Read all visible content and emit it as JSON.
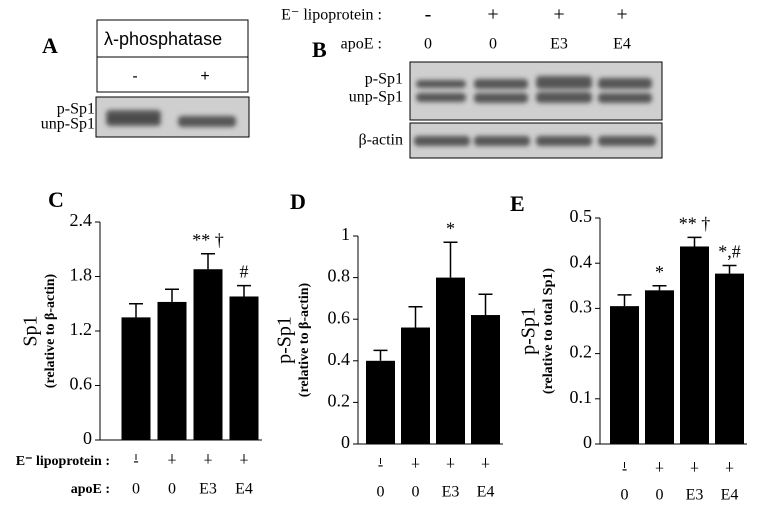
{
  "panel_a": {
    "label": "A",
    "header": "λ-phosphatase",
    "lanes": [
      "-",
      "+"
    ],
    "bands": [
      "p-Sp1",
      "unp-Sp1"
    ]
  },
  "panel_b": {
    "label": "B",
    "row_labels": [
      "E⁻ lipoprotein :",
      "apoE :"
    ],
    "lipoprotein": [
      "-",
      "+",
      "+",
      "+"
    ],
    "apoe": [
      "0",
      "0",
      "E3",
      "E4"
    ],
    "bands": [
      "p-Sp1",
      "unp-Sp1"
    ],
    "loading": "β-actin"
  },
  "chart_data": [
    {
      "type": "bar",
      "panel": "C",
      "ylabel": "Sp1",
      "ylabel_sub": "(relative to β-actin)",
      "row_labels": [
        "E⁻ lipoprotein :",
        "apoE :"
      ],
      "lipoprotein": [
        "-",
        "+",
        "+",
        "+"
      ],
      "categories": [
        "0",
        "0",
        "E3",
        "E4"
      ],
      "values": [
        1.35,
        1.52,
        1.88,
        1.58
      ],
      "errors": [
        0.15,
        0.14,
        0.17,
        0.12
      ],
      "bar_labels": [
        null,
        null,
        "** †",
        "#"
      ],
      "color": "#000000",
      "ylim": [
        0,
        2.4
      ],
      "yticks": [
        0,
        0.6,
        1.2,
        1.8,
        2.4
      ]
    },
    {
      "type": "bar",
      "panel": "D",
      "ylabel": "p-Sp1",
      "ylabel_sub": "(relative to β-actin)",
      "lipoprotein": [
        "-",
        "+",
        "+",
        "+"
      ],
      "categories": [
        "0",
        "0",
        "E3",
        "E4"
      ],
      "values": [
        0.4,
        0.56,
        0.8,
        0.62
      ],
      "errors": [
        0.05,
        0.1,
        0.17,
        0.1
      ],
      "bar_labels": [
        null,
        null,
        "*",
        null
      ],
      "color": "#000000",
      "ylim": [
        0,
        1
      ],
      "yticks": [
        0,
        0.2,
        0.4,
        0.6,
        0.8,
        1
      ]
    },
    {
      "type": "bar",
      "panel": "E",
      "ylabel": "p-Sp1",
      "ylabel_sub": "(relative to total Sp1)",
      "lipoprotein": [
        "-",
        "+",
        "+",
        "+"
      ],
      "categories": [
        "0",
        "0",
        "E3",
        "E4"
      ],
      "values": [
        0.305,
        0.34,
        0.437,
        0.377
      ],
      "errors": [
        0.025,
        0.01,
        0.02,
        0.018
      ],
      "bar_labels": [
        null,
        "*",
        "** †",
        "*,#"
      ],
      "color": "#000000",
      "ylim": [
        0,
        0.5
      ],
      "yticks": [
        0,
        0.1,
        0.2,
        0.3,
        0.4,
        0.5
      ]
    }
  ]
}
